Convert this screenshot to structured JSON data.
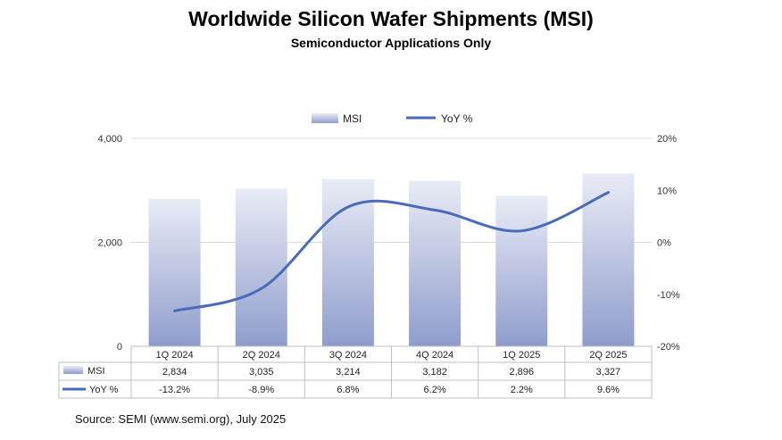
{
  "title": "Worldwide Silicon Wafer Shipments (MSI)",
  "subtitle": "Semiconductor Applications Only",
  "source": "Source: SEMI (www.semi.org), July 2025",
  "colors": {
    "bar_top": "#e9ebf6",
    "bar_bottom": "#8f9dcc",
    "line": "#4a6cb8",
    "grid": "#d9d9d9"
  },
  "chart_data": {
    "type": "bar",
    "categories": [
      "1Q 2024",
      "2Q 2024",
      "3Q 2024",
      "4Q 2024",
      "1Q 2025",
      "2Q 2025"
    ],
    "series": [
      {
        "name": "MSI",
        "type": "bar",
        "axis": "left",
        "values": [
          2834,
          3035,
          3214,
          3182,
          2896,
          3327
        ],
        "labels": [
          "2,834",
          "3,035",
          "3,214",
          "3,182",
          "2,896",
          "3,327"
        ]
      },
      {
        "name": "YoY %",
        "type": "line",
        "axis": "right",
        "values": [
          -13.2,
          -8.9,
          6.8,
          6.2,
          2.2,
          9.6
        ],
        "labels": [
          "-13.2%",
          "-8.9%",
          "6.8%",
          "6.2%",
          "2.2%",
          "9.6%"
        ]
      }
    ],
    "y_left": {
      "ylim": [
        0,
        4000
      ],
      "ticks": [
        "4,000",
        "2,000",
        "0"
      ],
      "tick_values": [
        4000,
        2000,
        0
      ]
    },
    "y_right": {
      "ylim": [
        -20,
        20
      ],
      "ticks": [
        "20%",
        "10%",
        "0%",
        "-10%",
        "-20%"
      ],
      "tick_values": [
        20,
        10,
        0,
        -10,
        -20
      ]
    },
    "legend": {
      "position": "top-center",
      "items": [
        "MSI",
        "YoY %"
      ]
    },
    "data_table": true,
    "grid": true
  }
}
